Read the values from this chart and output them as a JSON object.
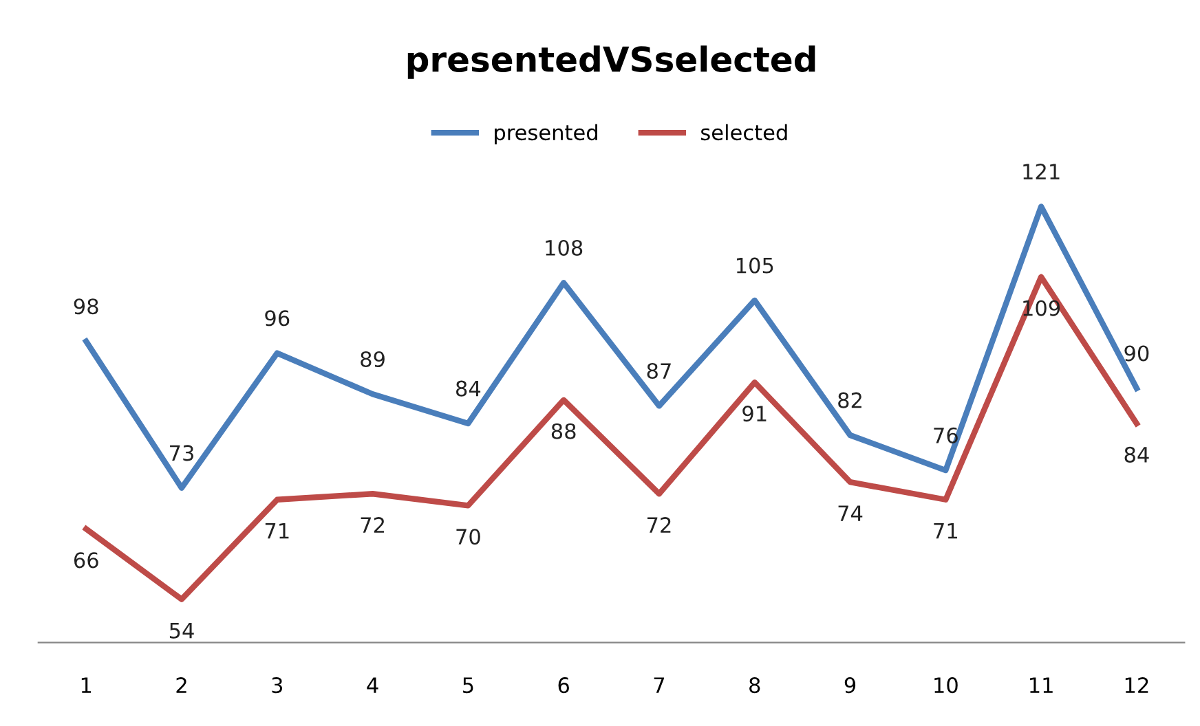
{
  "chart_data": {
    "type": "line",
    "title": "presentedVSselected",
    "categories": [
      "1",
      "2",
      "3",
      "4",
      "5",
      "6",
      "7",
      "8",
      "9",
      "10",
      "11",
      "12"
    ],
    "series": [
      {
        "name": "presented",
        "color": "#4a7ebb",
        "values": [
          98,
          73,
          96,
          89,
          84,
          108,
          87,
          105,
          82,
          76,
          121,
          90
        ]
      },
      {
        "name": "selected",
        "color": "#be4b48",
        "values": [
          66,
          54,
          71,
          72,
          70,
          88,
          72,
          91,
          74,
          71,
          109,
          84
        ]
      }
    ],
    "data_labels": true,
    "legend": "top",
    "grid": false,
    "marker": "none",
    "line_style": "solid"
  }
}
